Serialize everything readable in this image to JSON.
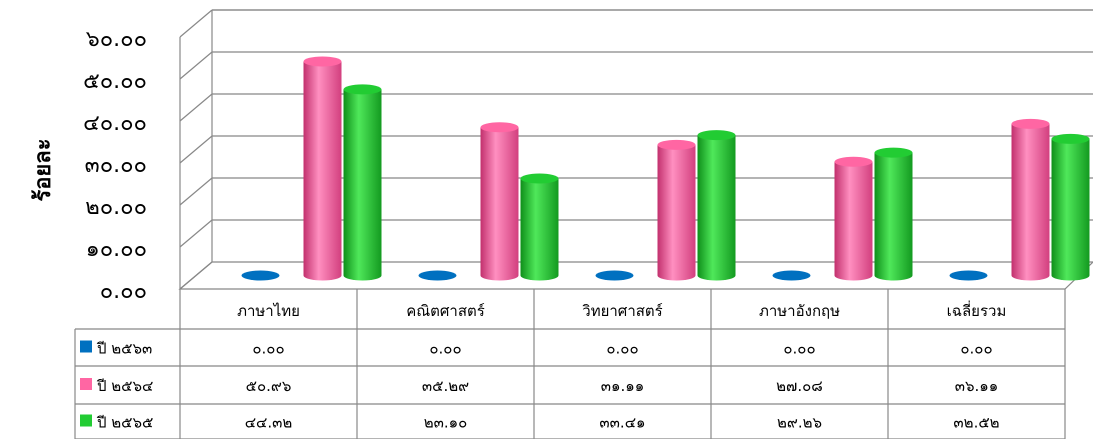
{
  "chart_data": {
    "type": "bar",
    "style": "3d-cylinder",
    "title": "",
    "xlabel": "",
    "ylabel": "ร้อยละ",
    "ylim": [
      0,
      60
    ],
    "yticks": [
      "๐.๐๐",
      "๑๐.๐๐",
      "๒๐.๐๐",
      "๓๐.๐๐",
      "๔๐.๐๐",
      "๕๐.๐๐",
      "๖๐.๐๐"
    ],
    "grid": true,
    "legend": "data-table",
    "categories": [
      "ภาษาไทย",
      "คณิตศาสตร์",
      "วิทยาศาสตร์",
      "ภาษาอังกฤษ",
      "เฉลี่ยรวม"
    ],
    "series": [
      {
        "name": "ปี ๒๕๖๓",
        "color": "#0070c0",
        "values": [
          0.0,
          0.0,
          0.0,
          0.0,
          0.0
        ],
        "labels": [
          "๐.๐๐",
          "๐.๐๐",
          "๐.๐๐",
          "๐.๐๐",
          "๐.๐๐"
        ]
      },
      {
        "name": "ปี ๒๕๖๔",
        "color": "#ff66a3",
        "values": [
          50.96,
          35.29,
          31.11,
          27.08,
          36.11
        ],
        "labels": [
          "๕๐.๙๖",
          "๓๕.๒๙",
          "๓๑.๑๑",
          "๒๗.๐๘",
          "๓๖.๑๑"
        ]
      },
      {
        "name": "ปี ๒๕๖๕",
        "color": "#22cc33",
        "values": [
          44.32,
          23.1,
          33.41,
          29.26,
          32.52
        ],
        "labels": [
          "๔๔.๓๒",
          "๒๓.๑๐",
          "๓๓.๔๑",
          "๒๙.๒๖",
          "๓๒.๕๒"
        ]
      }
    ]
  }
}
